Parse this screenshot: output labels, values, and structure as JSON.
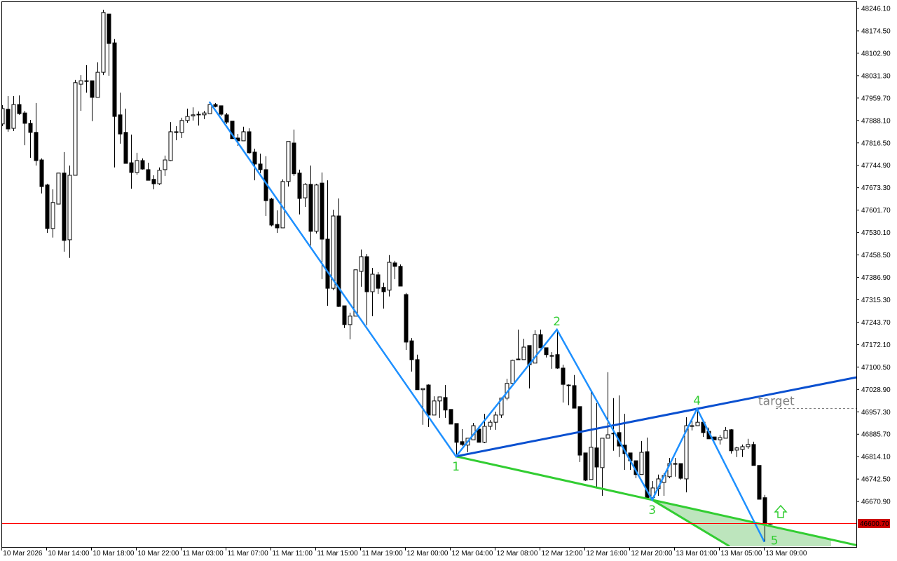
{
  "chart_data": {
    "type": "candlestick",
    "price_axis": {
      "labels": [
        "48246.10",
        "48174.50",
        "48102.90",
        "48031.30",
        "47959.70",
        "47888.10",
        "47816.50",
        "47744.90",
        "47673.30",
        "47601.70",
        "47530.10",
        "47458.50",
        "47386.90",
        "47315.30",
        "47243.70",
        "47172.10",
        "47100.50",
        "47028.90",
        "46957.30",
        "46885.70",
        "46814.10",
        "46742.50",
        "46670.90"
      ],
      "range": [
        46535.0,
        48273.0
      ]
    },
    "current_price": {
      "label": "46600.70",
      "value": 46600.7,
      "color": "#ff0000"
    },
    "time_axis": [
      {
        "bar": 0,
        "label": "10 Mar 2026"
      },
      {
        "bar": 8,
        "label": "10 Mar 14:00"
      },
      {
        "bar": 16,
        "label": "10 Mar 18:00"
      },
      {
        "bar": 24,
        "label": "10 Mar 22:00"
      },
      {
        "bar": 32,
        "label": "11 Mar 03:00"
      },
      {
        "bar": 40,
        "label": "11 Mar 07:00"
      },
      {
        "bar": 48,
        "label": "11 Mar 11:00"
      },
      {
        "bar": 56,
        "label": "11 Mar 15:00"
      },
      {
        "bar": 64,
        "label": "11 Mar 19:00"
      },
      {
        "bar": 72,
        "label": "12 Mar 00:00"
      },
      {
        "bar": 80,
        "label": "12 Mar 04:00"
      },
      {
        "bar": 88,
        "label": "12 Mar 08:00"
      },
      {
        "bar": 96,
        "label": "12 Mar 12:00"
      },
      {
        "bar": 104,
        "label": "12 Mar 16:00"
      },
      {
        "bar": 112,
        "label": "12 Mar 20:00"
      },
      {
        "bar": 120,
        "label": "13 Mar 01:00"
      },
      {
        "bar": 128,
        "label": "13 Mar 05:00"
      },
      {
        "bar": 136,
        "label": "13 Mar 09:00"
      }
    ],
    "candles_ohlc": [
      [
        47877,
        47937,
        47870,
        47926
      ],
      [
        47924,
        47966,
        47852,
        47861
      ],
      [
        47863,
        47966,
        47854,
        47939
      ],
      [
        47939,
        47968,
        47906,
        47910
      ],
      [
        47912,
        47919,
        47809,
        47879
      ],
      [
        47879,
        47890,
        47769,
        47850
      ],
      [
        47850,
        47944,
        47744,
        47760
      ],
      [
        47762,
        47767,
        47655,
        47677
      ],
      [
        47682,
        47686,
        47529,
        47543
      ],
      [
        47543,
        47668,
        47514,
        47626
      ],
      [
        47621,
        47720,
        47621,
        47720
      ],
      [
        47720,
        47787,
        47469,
        47505
      ],
      [
        47507,
        47744,
        47449,
        47713
      ],
      [
        47713,
        48018,
        47713,
        48009
      ],
      [
        48004,
        48033,
        47919,
        48015
      ],
      [
        48015,
        48065,
        47977,
        48013
      ],
      [
        48015,
        48015,
        47886,
        47962
      ],
      [
        47962,
        48074,
        47962,
        48042
      ],
      [
        48042,
        48242,
        48033,
        48233
      ],
      [
        48228,
        48228,
        48031,
        48134
      ],
      [
        48136,
        48148,
        47738,
        47901
      ],
      [
        47906,
        47977,
        47814,
        47845
      ],
      [
        47850,
        47926,
        47751,
        47751
      ],
      [
        47753,
        47843,
        47670,
        47722
      ],
      [
        47722,
        47785,
        47715,
        47760
      ],
      [
        47760,
        47767,
        47731,
        47733
      ],
      [
        47731,
        47753,
        47697,
        47697
      ],
      [
        47700,
        47713,
        47668,
        47686
      ],
      [
        47686,
        47738,
        47682,
        47729
      ],
      [
        47731,
        47776,
        47711,
        47762
      ],
      [
        47760,
        47883,
        47758,
        47852
      ],
      [
        47850,
        47870,
        47825,
        47852
      ],
      [
        47850,
        47897,
        47832,
        47888
      ],
      [
        47888,
        47926,
        47881,
        47901
      ],
      [
        47903,
        47930,
        47888,
        47906
      ],
      [
        47906,
        47917,
        47872,
        47908
      ],
      [
        47906,
        47919,
        47892,
        47912
      ],
      [
        47910,
        47944,
        47910,
        47939
      ],
      [
        47939,
        47944,
        47930,
        47933
      ],
      [
        47935,
        47935,
        47903,
        47908
      ],
      [
        47906,
        47912,
        47877,
        47883
      ],
      [
        47886,
        47886,
        47830,
        47830
      ],
      [
        47832,
        47845,
        47807,
        47823
      ],
      [
        47823,
        47868,
        47823,
        47852
      ],
      [
        47852,
        47863,
        47782,
        47785
      ],
      [
        47787,
        47798,
        47697,
        47749
      ],
      [
        47749,
        47782,
        47720,
        47731
      ],
      [
        47731,
        47774,
        47583,
        47632
      ],
      [
        47637,
        47641,
        47550,
        47554
      ],
      [
        47556,
        47601,
        47529,
        47545
      ],
      [
        47545,
        47700,
        47545,
        47693
      ],
      [
        47693,
        47821,
        47677,
        47821
      ],
      [
        47816,
        47859,
        47711,
        47718
      ],
      [
        47720,
        47731,
        47588,
        47639
      ],
      [
        47641,
        47688,
        47612,
        47684
      ],
      [
        47684,
        47744,
        47489,
        47534
      ],
      [
        47534,
        47686,
        47527,
        47682
      ],
      [
        47688,
        47722,
        47381,
        47509
      ],
      [
        47509,
        47697,
        47296,
        47352
      ],
      [
        47352,
        47603,
        47346,
        47583
      ],
      [
        47583,
        47639,
        47292,
        47294
      ],
      [
        47296,
        47296,
        47225,
        47236
      ],
      [
        47236,
        47274,
        47189,
        47263
      ],
      [
        47263,
        47411,
        47263,
        47411
      ],
      [
        47406,
        47476,
        47357,
        47453
      ],
      [
        47453,
        47462,
        47234,
        47341
      ],
      [
        47341,
        47417,
        47263,
        47397
      ],
      [
        47395,
        47404,
        47334,
        47352
      ],
      [
        47355,
        47370,
        47287,
        47341
      ],
      [
        47346,
        47458,
        47326,
        47435
      ],
      [
        47433,
        47440,
        47381,
        47422
      ],
      [
        47422,
        47428,
        47359,
        47359
      ],
      [
        47332,
        47337,
        47155,
        47180
      ],
      [
        47184,
        47193,
        47086,
        47124
      ],
      [
        47124,
        47140,
        47028,
        47028
      ],
      [
        47028,
        47030,
        46916,
        47032
      ],
      [
        47043,
        47045,
        46909,
        46947
      ],
      [
        46947,
        47007,
        46947,
        46992
      ],
      [
        46992,
        47005,
        46938,
        47005
      ],
      [
        47003,
        47043,
        46938,
        46963
      ],
      [
        46965,
        46965,
        46918,
        46918
      ],
      [
        46920,
        46920,
        46815,
        46860
      ],
      [
        46862,
        46902,
        46848,
        46853
      ],
      [
        46851,
        46873,
        46828,
        46873
      ],
      [
        46868,
        46922,
        46868,
        46913
      ],
      [
        46902,
        46913,
        46860,
        46860
      ],
      [
        46860,
        46951,
        46857,
        46911
      ],
      [
        46911,
        46931,
        46900,
        46924
      ],
      [
        46924,
        46958,
        46900,
        46947
      ],
      [
        46947,
        47003,
        46938,
        47001
      ],
      [
        47001,
        47063,
        46994,
        47048
      ],
      [
        47048,
        47124,
        47048,
        47122
      ],
      [
        47124,
        47220,
        47124,
        47126
      ],
      [
        47124,
        47191,
        47124,
        47164
      ],
      [
        47169,
        47169,
        47032,
        47108
      ],
      [
        47113,
        47218,
        47113,
        47204
      ],
      [
        47204,
        47220,
        47162,
        47162
      ],
      [
        47162,
        47162,
        47131,
        47140
      ],
      [
        47137,
        47148,
        47095,
        47137
      ],
      [
        47140,
        47220,
        47095,
        47097
      ],
      [
        47097,
        47108,
        46987,
        47045
      ],
      [
        47043,
        47045,
        46978,
        47043
      ],
      [
        47041,
        47075,
        46969,
        46969
      ],
      [
        46974,
        46974,
        46797,
        46819
      ],
      [
        46826,
        46826,
        46736,
        46739
      ],
      [
        46741,
        47021,
        46741,
        46844
      ],
      [
        46842,
        46985,
        46716,
        46781
      ],
      [
        46779,
        46873,
        46689,
        46873
      ],
      [
        46873,
        47084,
        46873,
        46884
      ],
      [
        46889,
        47001,
        46833,
        46889
      ],
      [
        46891,
        47010,
        46813,
        46848
      ],
      [
        46851,
        46951,
        46772,
        46824
      ],
      [
        46826,
        46826,
        46772,
        46801
      ],
      [
        46801,
        46801,
        46745,
        46757
      ],
      [
        46757,
        46864,
        46757,
        46828
      ],
      [
        46830,
        46875,
        46683,
        46683
      ],
      [
        46683,
        46736,
        46676,
        46714
      ],
      [
        46712,
        46757,
        46689,
        46743
      ],
      [
        46732,
        46761,
        46689,
        46754
      ],
      [
        46750,
        46810,
        46745,
        46792
      ],
      [
        46792,
        46810,
        46750,
        46792
      ],
      [
        46792,
        46792,
        46741,
        46745
      ],
      [
        46743,
        46940,
        46700,
        46913
      ],
      [
        46911,
        46940,
        46898,
        46913
      ],
      [
        46913,
        46967,
        46913,
        46924
      ],
      [
        46924,
        46924,
        46877,
        46891
      ],
      [
        46895,
        46907,
        46871,
        46871
      ],
      [
        46877,
        46877,
        46868,
        46868
      ],
      [
        46868,
        46884,
        46853,
        46875
      ],
      [
        46873,
        46909,
        46873,
        46898
      ],
      [
        46900,
        46902,
        46824,
        46833
      ],
      [
        46835,
        46846,
        46813,
        46842
      ],
      [
        46837,
        46853,
        46813,
        46846
      ],
      [
        46846,
        46871,
        46839,
        46853
      ],
      [
        46853,
        46862,
        46786,
        46786
      ],
      [
        46786,
        46786,
        46678,
        46678
      ],
      [
        46683,
        46692,
        46542,
        46600
      ],
      [
        46600.7,
        46602,
        46597,
        46600.7
      ]
    ],
    "wave_points": [
      {
        "label": "",
        "bar": 37,
        "price": 47948
      },
      {
        "label": "1",
        "bar": 81,
        "price": 46815
      },
      {
        "label": "2",
        "bar": 99,
        "price": 47220
      },
      {
        "label": "3",
        "bar": 116,
        "price": 46676
      },
      {
        "label": "4",
        "bar": 124,
        "price": 46967
      },
      {
        "label": "5",
        "bar": 136,
        "price": 46542
      }
    ],
    "target": {
      "label": "target",
      "price": 46969
    },
    "signal": "arrow-up",
    "colors": {
      "wave": "#1e90ff",
      "channel_upper": "#0a50d0",
      "channel_lower": "#32cd32",
      "labels": "#32cd32",
      "zone_fill": "#bde5bd",
      "target": "#808080",
      "current_price": "#ff0000"
    }
  }
}
